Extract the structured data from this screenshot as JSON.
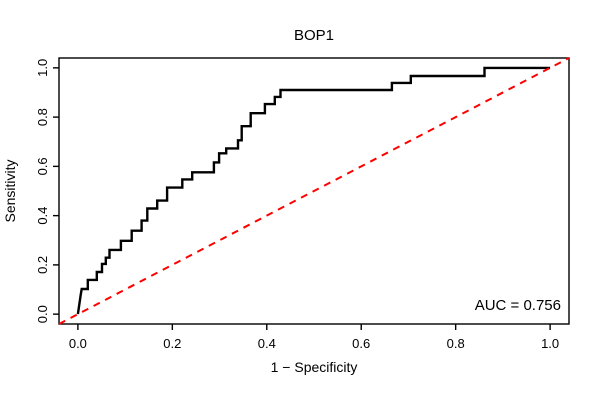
{
  "figure": {
    "kind": "roc-curve-plot"
  },
  "colors": {
    "curve": "#000000",
    "reference_line": "#ff0000",
    "axis": "#000000",
    "background": "#ffffff"
  },
  "chart_data": {
    "type": "line",
    "title": "BOP1",
    "xlabel": "1 − Specificity",
    "ylabel": "Sensitivity",
    "xlim": [
      -0.04,
      1.04
    ],
    "ylim": [
      -0.04,
      1.04
    ],
    "grid": false,
    "legend": "none",
    "x_ticks": [
      0.0,
      0.2,
      0.4,
      0.6,
      0.8,
      1.0
    ],
    "x_tick_labels": [
      "0.0",
      "0.2",
      "0.4",
      "0.6",
      "0.8",
      "1.0"
    ],
    "y_ticks": [
      0.0,
      0.2,
      0.4,
      0.6,
      0.8,
      1.0
    ],
    "y_tick_labels": [
      "0.0",
      "0.2",
      "0.4",
      "0.6",
      "0.8",
      "1.0"
    ],
    "annotation": {
      "text": "AUC = 0.756",
      "position": "bottom-right"
    },
    "auc_value": 0.756,
    "series": [
      {
        "name": "ROC curve",
        "style": "step-solid",
        "color": "#000000",
        "x": [
          0.0,
          0.006,
          0.008,
          0.021,
          0.021,
          0.04,
          0.04,
          0.051,
          0.051,
          0.059,
          0.059,
          0.067,
          0.067,
          0.091,
          0.091,
          0.114,
          0.114,
          0.135,
          0.135,
          0.147,
          0.147,
          0.168,
          0.168,
          0.189,
          0.189,
          0.221,
          0.221,
          0.242,
          0.242,
          0.288,
          0.288,
          0.299,
          0.299,
          0.314,
          0.314,
          0.339,
          0.339,
          0.347,
          0.347,
          0.366,
          0.366,
          0.396,
          0.396,
          0.417,
          0.417,
          0.429,
          0.429,
          0.665,
          0.665,
          0.705,
          0.705,
          0.861,
          0.861,
          1.0
        ],
        "y": [
          0.0,
          0.078,
          0.102,
          0.102,
          0.139,
          0.139,
          0.171,
          0.171,
          0.204,
          0.204,
          0.229,
          0.229,
          0.261,
          0.261,
          0.298,
          0.298,
          0.339,
          0.339,
          0.38,
          0.38,
          0.429,
          0.429,
          0.461,
          0.461,
          0.514,
          0.514,
          0.547,
          0.547,
          0.576,
          0.576,
          0.616,
          0.616,
          0.653,
          0.653,
          0.673,
          0.673,
          0.706,
          0.706,
          0.763,
          0.763,
          0.816,
          0.816,
          0.853,
          0.853,
          0.882,
          0.882,
          0.91,
          0.91,
          0.939,
          0.939,
          0.967,
          0.967,
          1.0,
          1.0
        ]
      },
      {
        "name": "chance diagonal",
        "style": "dashed",
        "color": "#ff0000",
        "x": [
          -0.04,
          1.04
        ],
        "y": [
          -0.04,
          1.04
        ]
      }
    ]
  }
}
